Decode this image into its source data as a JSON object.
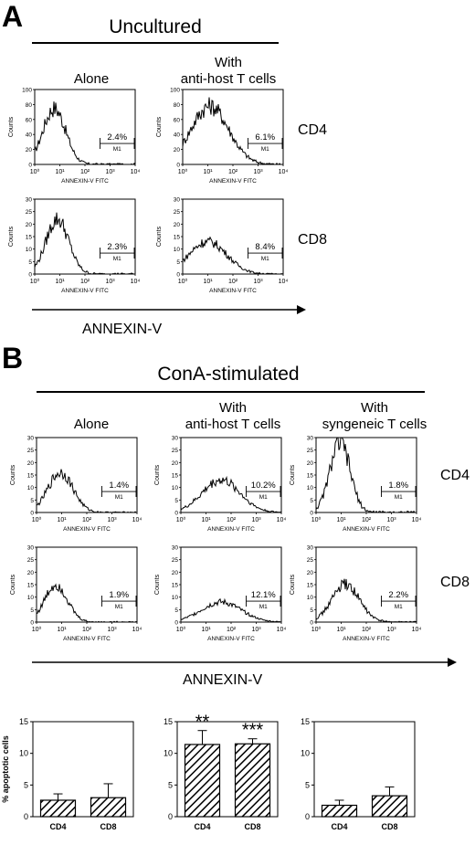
{
  "panel_a": {
    "letter": "A",
    "title": "Uncultured",
    "columns": [
      "Alone",
      "With\nanti-host T cells"
    ],
    "rows": [
      "CD4",
      "CD8"
    ],
    "axis_title": "ANNEXIN-V"
  },
  "panel_b": {
    "letter": "B",
    "title": "ConA-stimulated",
    "columns": [
      "Alone",
      "With\nanti-host T cells",
      "With\nsyngeneic T cells"
    ],
    "rows": [
      "CD4",
      "CD8"
    ],
    "axis_title": "ANNEXIN-V"
  },
  "histogram_text": {
    "xlabel": "ANNEXIN-V FITC",
    "ylabel": "Counts",
    "gate": "M1",
    "x_ticks": [
      "10⁰",
      "10¹",
      "10²",
      "10³",
      "10⁴"
    ]
  },
  "chart_data": [
    {
      "type": "area",
      "panel": "A",
      "row": "CD4",
      "column": "Alone",
      "x_scale": "log",
      "xlim": [
        1,
        10000
      ],
      "ylim": [
        0,
        100
      ],
      "y_ticks": [
        0,
        20,
        40,
        60,
        80,
        100
      ],
      "gate_percent_label": "2.4%",
      "peak_x": 6,
      "peak_y": 75,
      "width": 0.45
    },
    {
      "type": "area",
      "panel": "A",
      "row": "CD4",
      "column": "With anti-host T cells",
      "x_scale": "log",
      "xlim": [
        1,
        10000
      ],
      "ylim": [
        0,
        100
      ],
      "y_ticks": [
        0,
        20,
        40,
        60,
        80,
        100
      ],
      "gate_percent_label": "6.1%",
      "peak_x": 12,
      "peak_y": 78,
      "width": 0.75
    },
    {
      "type": "area",
      "panel": "A",
      "row": "CD8",
      "column": "Alone",
      "x_scale": "log",
      "xlim": [
        1,
        10000
      ],
      "ylim": [
        0,
        30
      ],
      "y_ticks": [
        0,
        5,
        10,
        15,
        20,
        25,
        30
      ],
      "gate_percent_label": "2.3%",
      "peak_x": 8,
      "peak_y": 22,
      "width": 0.45
    },
    {
      "type": "area",
      "panel": "A",
      "row": "CD8",
      "column": "With anti-host T cells",
      "x_scale": "log",
      "xlim": [
        1,
        10000
      ],
      "ylim": [
        0,
        30
      ],
      "y_ticks": [
        0,
        5,
        10,
        15,
        20,
        25,
        30
      ],
      "gate_percent_label": "8.4%",
      "peak_x": 10,
      "peak_y": 13,
      "width": 0.75
    },
    {
      "type": "area",
      "panel": "B",
      "row": "CD4",
      "column": "Alone",
      "x_scale": "log",
      "xlim": [
        1,
        10000
      ],
      "ylim": [
        0,
        30
      ],
      "y_ticks": [
        0,
        5,
        10,
        15,
        20,
        25,
        30
      ],
      "gate_percent_label": "1.4%",
      "peak_x": 9,
      "peak_y": 16,
      "width": 0.5
    },
    {
      "type": "area",
      "panel": "B",
      "row": "CD4",
      "column": "With anti-host T cells",
      "x_scale": "log",
      "xlim": [
        1,
        10000
      ],
      "ylim": [
        0,
        30
      ],
      "y_ticks": [
        0,
        5,
        10,
        15,
        20,
        25,
        30
      ],
      "gate_percent_label": "10.2%",
      "peak_x": 40,
      "peak_y": 13,
      "width": 0.75
    },
    {
      "type": "area",
      "panel": "B",
      "row": "CD4",
      "column": "With syngeneic T cells",
      "x_scale": "log",
      "xlim": [
        1,
        10000
      ],
      "ylim": [
        0,
        30
      ],
      "y_ticks": [
        0,
        5,
        10,
        15,
        20,
        25,
        30
      ],
      "gate_percent_label": "1.8%",
      "peak_x": 9,
      "peak_y": 28,
      "width": 0.4
    },
    {
      "type": "area",
      "panel": "B",
      "row": "CD8",
      "column": "Alone",
      "x_scale": "log",
      "xlim": [
        1,
        10000
      ],
      "ylim": [
        0,
        30
      ],
      "y_ticks": [
        0,
        5,
        10,
        15,
        20,
        25,
        30
      ],
      "gate_percent_label": "1.9%",
      "peak_x": 6,
      "peak_y": 15,
      "width": 0.45
    },
    {
      "type": "area",
      "panel": "B",
      "row": "CD8",
      "column": "With anti-host T cells",
      "x_scale": "log",
      "xlim": [
        1,
        10000
      ],
      "ylim": [
        0,
        30
      ],
      "y_ticks": [
        0,
        5,
        10,
        15,
        20,
        25,
        30
      ],
      "gate_percent_label": "12.1%",
      "peak_x": 40,
      "peak_y": 8,
      "width": 0.8
    },
    {
      "type": "area",
      "panel": "B",
      "row": "CD8",
      "column": "With syngeneic T cells",
      "x_scale": "log",
      "xlim": [
        1,
        10000
      ],
      "ylim": [
        0,
        30
      ],
      "y_ticks": [
        0,
        5,
        10,
        15,
        20,
        25,
        30
      ],
      "gate_percent_label": "2.2%",
      "peak_x": 15,
      "peak_y": 15,
      "width": 0.55
    },
    {
      "type": "bar",
      "ylabel": "% apoptotic cells",
      "categories": [
        "CD4",
        "CD8"
      ],
      "values": [
        2.6,
        3.0
      ],
      "errors": [
        1.0,
        2.2
      ],
      "significance": [
        "",
        ""
      ],
      "ylim": [
        0,
        15
      ],
      "y_ticks": [
        0,
        5,
        10,
        15
      ]
    },
    {
      "type": "bar",
      "ylabel": "",
      "categories": [
        "CD4",
        "CD8"
      ],
      "values": [
        11.4,
        11.5
      ],
      "errors": [
        2.2,
        0.8
      ],
      "significance": [
        "**",
        "***"
      ],
      "ylim": [
        0,
        15
      ],
      "y_ticks": [
        0,
        5,
        10,
        15
      ]
    },
    {
      "type": "bar",
      "ylabel": "",
      "categories": [
        "CD4",
        "CD8"
      ],
      "values": [
        1.8,
        3.3
      ],
      "errors": [
        0.8,
        1.4
      ],
      "significance": [
        "",
        ""
      ],
      "ylim": [
        0,
        15
      ],
      "y_ticks": [
        0,
        5,
        10,
        15
      ]
    }
  ]
}
